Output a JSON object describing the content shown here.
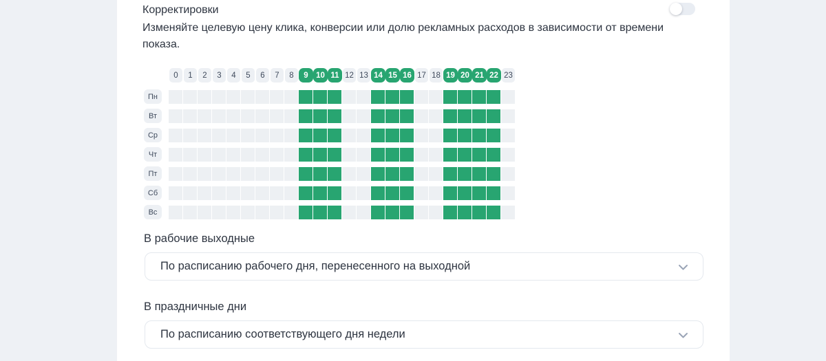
{
  "panel": {
    "title": "Корректировки",
    "description_line1": "Изменяйте целевую цену клика, конверсии или долю рекламных расходов в зависимости от времени",
    "description_line2": "показа.",
    "toggle_state": "off"
  },
  "schedule": {
    "hours": [
      "0",
      "1",
      "2",
      "3",
      "4",
      "5",
      "6",
      "7",
      "8",
      "9",
      "10",
      "11",
      "12",
      "13",
      "14",
      "15",
      "16",
      "17",
      "18",
      "19",
      "20",
      "21",
      "22",
      "23"
    ],
    "selected_hours": [
      9,
      10,
      11,
      14,
      15,
      16,
      19,
      20,
      21,
      22
    ],
    "days": [
      {
        "label": "Пн",
        "selected_hours": [
          9,
          10,
          11,
          14,
          15,
          16,
          19,
          20,
          21,
          22
        ]
      },
      {
        "label": "Вт",
        "selected_hours": [
          9,
          10,
          11,
          14,
          15,
          16,
          19,
          20,
          21,
          22
        ]
      },
      {
        "label": "Ср",
        "selected_hours": [
          9,
          10,
          11,
          14,
          15,
          16,
          19,
          20,
          21,
          22
        ]
      },
      {
        "label": "Чт",
        "selected_hours": [
          9,
          10,
          11,
          14,
          15,
          16,
          19,
          20,
          21,
          22
        ]
      },
      {
        "label": "Пт",
        "selected_hours": [
          9,
          10,
          11,
          14,
          15,
          16,
          19,
          20,
          21,
          22
        ]
      },
      {
        "label": "Сб",
        "selected_hours": [
          9,
          10,
          11,
          14,
          15,
          16,
          19,
          20,
          21,
          22
        ]
      },
      {
        "label": "Вс",
        "selected_hours": [
          9,
          10,
          11,
          14,
          15,
          16,
          19,
          20,
          21,
          22
        ]
      }
    ]
  },
  "working_weekends": {
    "label": "В рабочие выходные",
    "value": "По расписанию рабочего дня, перенесенного на выходной"
  },
  "holidays": {
    "label": "В праздничные дни",
    "value": "По расписанию соответствующего дня недели"
  },
  "colors": {
    "selected_green": "#28a571",
    "cell_gray": "#edf0f3",
    "side_background": "#eef1f5",
    "chevron": "#9aa4b6"
  }
}
